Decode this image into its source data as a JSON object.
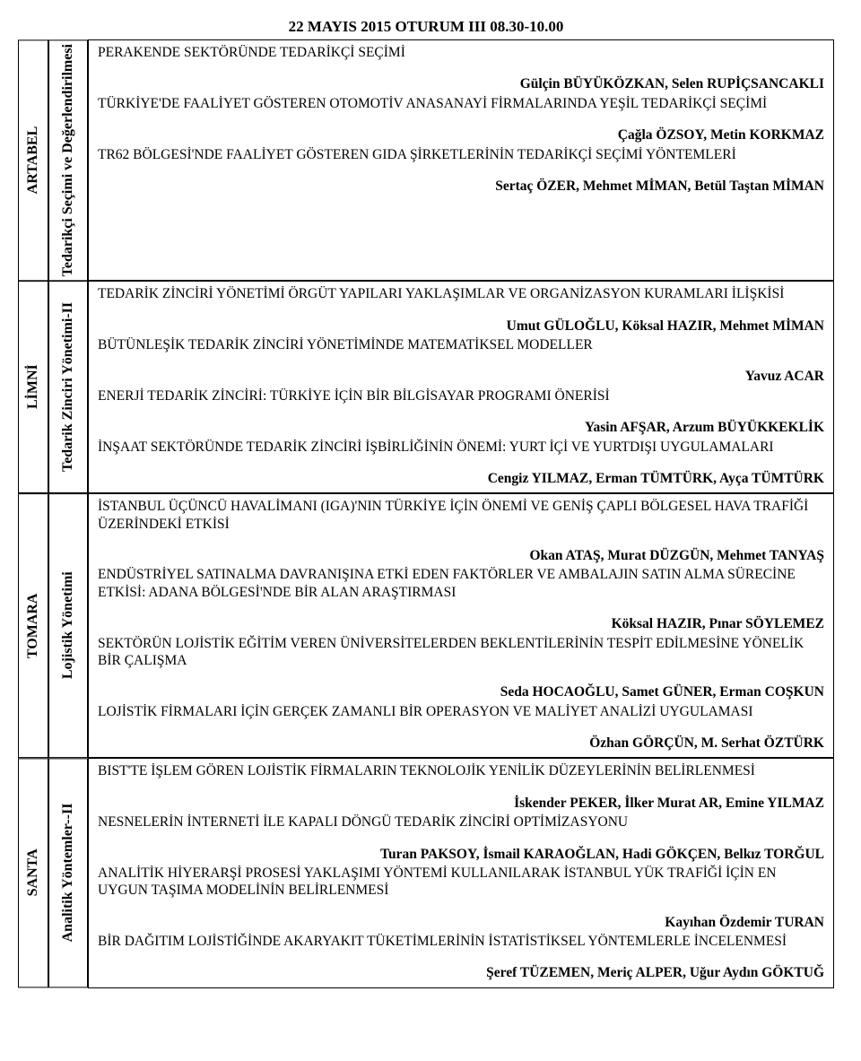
{
  "session_header": "22 MAYIS 2015 OTURUM III 08.30-10.00",
  "colors": {
    "text": "#000000",
    "background": "#ffffff",
    "border": "#000000"
  },
  "fonts": {
    "body_family": "Times New Roman",
    "body_size_pt": 12,
    "header_size_pt": 13,
    "header_weight": "bold",
    "authors_weight": "bold"
  },
  "blocks": [
    {
      "room": "ARTABEL",
      "track": "Tedarikçi Seçimi ve Değerlendirilmesi",
      "lead_title": "PERAKENDE SEKTÖRÜNDE TEDARİKÇİ SEÇİMİ",
      "items": [
        {
          "authors": "Gülçin BÜYÜKÖZKAN, Selen RUPİÇSANCAKLI",
          "title": "TÜRKİYE'DE FAALİYET GÖSTEREN OTOMOTİV ANASANAYİ FİRMALARINDA YEŞİL TEDARİKÇİ SEÇİMİ"
        },
        {
          "authors": "Çağla ÖZSOY, Metin KORKMAZ",
          "title": "TR62 BÖLGESİ'NDE FAALİYET GÖSTEREN GIDA ŞİRKETLERİNİN TEDARİKÇİ SEÇİMİ YÖNTEMLERİ"
        }
      ],
      "trailing_authors": "Sertaç ÖZER, Mehmet MİMAN, Betül Taştan MİMAN"
    },
    {
      "room": "LİMNİ",
      "track": "Tedarik Zinciri Yönetimi-II",
      "lead_title": "TEDARİK ZİNCİRİ YÖNETİMİ ÖRGÜT YAPILARI YAKLAŞIMLAR VE ORGANİZASYON KURAMLARI İLİŞKİSİ",
      "items": [
        {
          "authors": "Umut GÜLOĞLU, Köksal HAZIR, Mehmet MİMAN",
          "title": "BÜTÜNLEŞİK TEDARİK ZİNCİRİ YÖNETİMİNDE MATEMATİKSEL MODELLER"
        },
        {
          "authors": "Yavuz ACAR",
          "title": "ENERJİ TEDARİK ZİNCİRİ: TÜRKİYE İÇİN BİR BİLGİSAYAR PROGRAMI ÖNERİSİ"
        },
        {
          "authors": "Yasin AFŞAR, Arzum BÜYÜKKEKLİK",
          "title": "İNŞAAT SEKTÖRÜNDE TEDARİK ZİNCİRİ İŞBİRLİĞİNİN ÖNEMİ: YURT İÇİ VE YURTDIŞI UYGULAMALARI"
        }
      ],
      "trailing_authors": "Cengiz YILMAZ, Erman TÜMTÜRK, Ayça TÜMTÜRK"
    },
    {
      "room": "TOMARA",
      "track": "Lojistik Yönetimi",
      "lead_title": "İSTANBUL ÜÇÜNCÜ HAVALİMANI (IGA)'NIN TÜRKİYE İÇİN ÖNEMİ VE GENİŞ ÇAPLI BÖLGESEL HAVA TRAFİĞİ ÜZERİNDEKİ ETKİSİ",
      "items": [
        {
          "authors": "Okan ATAŞ, Murat DÜZGÜN, Mehmet TANYAŞ",
          "title": "ENDÜSTRİYEL SATINALMA DAVRANIŞINA ETKİ EDEN FAKTÖRLER VE AMBALAJIN SATIN ALMA SÜRECİNE ETKİSİ: ADANA BÖLGESİ'NDE BİR ALAN ARAŞTIRMASI"
        },
        {
          "authors": "Köksal HAZIR, Pınar SÖYLEMEZ",
          "title": "SEKTÖRÜN LOJİSTİK EĞİTİM VEREN ÜNİVERSİTELERDEN BEKLENTİLERİNİN TESPİT EDİLMESİNE YÖNELİK BİR ÇALIŞMA"
        },
        {
          "authors": "Seda HOCAOĞLU, Samet GÜNER, Erman COŞKUN",
          "title": "LOJİSTİK FİRMALARI İÇİN GERÇEK ZAMANLI BİR OPERASYON VE MALİYET ANALİZİ UYGULAMASI"
        }
      ],
      "trailing_authors": "Özhan GÖRÇÜN, M. Serhat ÖZTÜRK"
    },
    {
      "room": "SANTA",
      "track": "Analitik Yöntemler--II",
      "lead_title": "BIST'TE İŞLEM GÖREN LOJİSTİK FİRMALARIN TEKNOLOJİK YENİLİK DÜZEYLERİNİN BELİRLENMESİ",
      "items": [
        {
          "authors": "İskender PEKER, İlker Murat AR, Emine YILMAZ",
          "title": "NESNELERİN İNTERNETİ İLE KAPALI DÖNGÜ TEDARİK ZİNCİRİ OPTİMİZASYONU"
        },
        {
          "authors": "Turan PAKSOY, İsmail KARAOĞLAN, Hadi GÖKÇEN, Belkız TORĞUL",
          "title": "ANALİTİK HİYERARŞİ PROSESİ YAKLAŞIMI YÖNTEMİ KULLANILARAK İSTANBUL YÜK TRAFİĞİ İÇİN EN UYGUN TAŞIMA MODELİNİN BELİRLENMESİ"
        },
        {
          "authors": "Kayıhan Özdemir TURAN",
          "title": "BİR DAĞITIM LOJİSTİĞİNDE AKARYAKIT TÜKETİMLERİNİN İSTATİSTİKSEL YÖNTEMLERLE İNCELENMESİ"
        }
      ],
      "trailing_authors": "Şeref TÜZEMEN, Meriç ALPER, Uğur Aydın GÖKTUĞ"
    }
  ]
}
